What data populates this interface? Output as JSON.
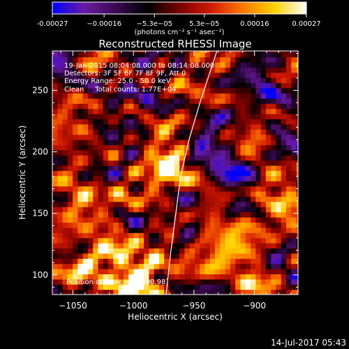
{
  "chart_data": {
    "type": "heatmap",
    "title": "Reconstructed RHESSI Image",
    "xlabel": "Heliocentric X (arcsec)",
    "ylabel": "Heliocentric Y (arcsec)",
    "xlim": [
      -1067,
      -864
    ],
    "ylim": [
      84,
      282
    ],
    "xticks": [
      -1050,
      -1000,
      -950,
      -900
    ],
    "xtick_labels": [
      "−1050",
      "−1000",
      "−950",
      "−900"
    ],
    "yticks": [
      100,
      150,
      200,
      250
    ],
    "ytick_labels": [
      "100",
      "150",
      "200",
      "250"
    ],
    "colorbar": {
      "range": [
        -0.00027,
        0.00027
      ],
      "ticks": [
        -0.00027,
        -0.00016,
        -5.3e-05,
        5.3e-05,
        0.00016,
        0.00027
      ],
      "tick_labels": [
        "-0.00027",
        "−0.00016",
        "−5.3e−05",
        "5.3e−05",
        "0.00016",
        "0.00027"
      ],
      "unit_label": "(photons cm⁻² s⁻¹ asec⁻²)",
      "colormap": [
        "#0000ff",
        "#6a1ba3",
        "#3a0a50",
        "#000000",
        "#7a0000",
        "#d21a00",
        "#ff7800",
        "#ffd200",
        "#ffffff"
      ]
    },
    "annotations": [
      "19-Jan-2015 08:04:08.000 to 08:14:08.000",
      "Detectors: 3F 5F 6F 7F 8F 9F, Att 0",
      "Energy Range: 25.0 - 50.0 keV",
      "Clean     Total counts: 1.77E+04"
    ],
    "peak_label": "Position of Peak = [",
    "peak_value": "990,98]",
    "limb": [
      [
        -931,
        282
      ],
      [
        -945,
        240
      ],
      [
        -954,
        210
      ],
      [
        -961,
        180
      ],
      [
        -965,
        150
      ],
      [
        -969,
        120
      ],
      [
        -973,
        84
      ]
    ],
    "hotspots": [
      {
        "x": -1000,
        "y": 95,
        "v": 1.0
      },
      {
        "x": -985,
        "y": 110,
        "v": 0.75
      },
      {
        "x": -1035,
        "y": 105,
        "v": 0.6
      },
      {
        "x": -1015,
        "y": 130,
        "v": 0.55
      },
      {
        "x": -975,
        "y": 200,
        "v": 0.7
      },
      {
        "x": -965,
        "y": 190,
        "v": 0.55
      },
      {
        "x": -1045,
        "y": 160,
        "v": 0.55
      },
      {
        "x": -1040,
        "y": 220,
        "v": 0.5
      },
      {
        "x": -1010,
        "y": 170,
        "v": 0.45
      },
      {
        "x": -905,
        "y": 140,
        "v": 0.6
      },
      {
        "x": -885,
        "y": 150,
        "v": 0.5
      },
      {
        "x": -930,
        "y": 120,
        "v": 0.55
      },
      {
        "x": -955,
        "y": 250,
        "v": 0.45
      },
      {
        "x": -1055,
        "y": 245,
        "v": 0.45
      },
      {
        "x": -900,
        "y": 105,
        "v": 0.4
      },
      {
        "x": -940,
        "y": 165,
        "v": 0.4
      }
    ],
    "coldspots": [
      {
        "x": -1000,
        "y": 205,
        "v": -0.6
      },
      {
        "x": -1020,
        "y": 240,
        "v": -0.55
      },
      {
        "x": -940,
        "y": 200,
        "v": -0.6
      },
      {
        "x": -920,
        "y": 240,
        "v": -0.55
      },
      {
        "x": -895,
        "y": 260,
        "v": -0.5
      },
      {
        "x": -955,
        "y": 150,
        "v": -0.7
      },
      {
        "x": -880,
        "y": 200,
        "v": -0.5
      },
      {
        "x": -1060,
        "y": 275,
        "v": -0.55
      },
      {
        "x": -990,
        "y": 255,
        "v": -0.45
      },
      {
        "x": -915,
        "y": 180,
        "v": -0.45
      }
    ]
  },
  "footer": {
    "timestamp": "14-Jul-2017 05:43"
  }
}
